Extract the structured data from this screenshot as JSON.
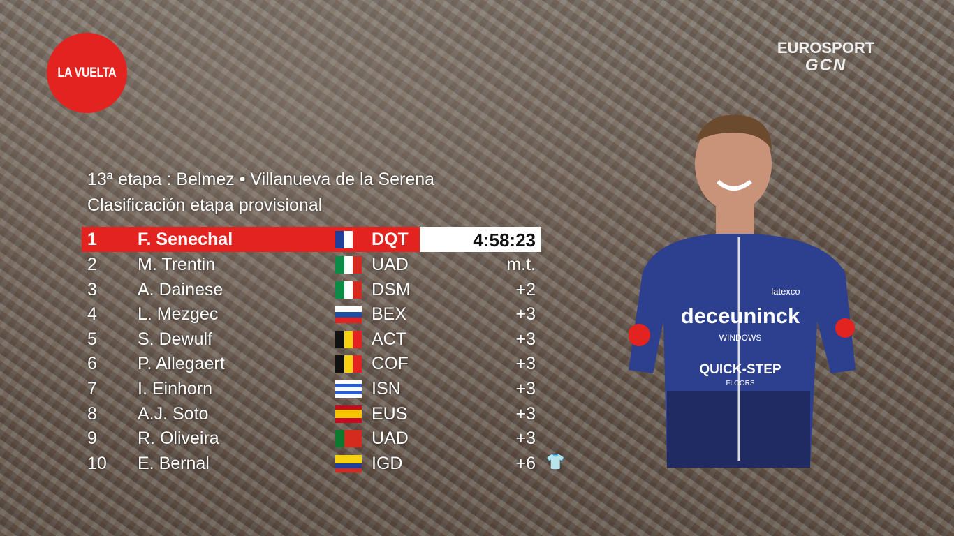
{
  "broadcast": {
    "race_logo": "LA VUELTA",
    "channel_logo_line1": "EUROSPORT",
    "channel_logo_line2": "GCN"
  },
  "header": {
    "stage": "13ª etapa : Belmez • Villanueva de la Serena",
    "subtitle": "Clasificación etapa provisional"
  },
  "results": [
    {
      "pos": "1",
      "name": "F. Senechal",
      "flag": "france",
      "team": "DQT",
      "time": "4:58:23"
    },
    {
      "pos": "2",
      "name": "M. Trentin",
      "flag": "italy",
      "team": "UAD",
      "time": "m.t."
    },
    {
      "pos": "3",
      "name": "A. Dainese",
      "flag": "italy",
      "team": "DSM",
      "time": "+2"
    },
    {
      "pos": "4",
      "name": "L. Mezgec",
      "flag": "slovenia",
      "team": "BEX",
      "time": "+3"
    },
    {
      "pos": "5",
      "name": "S. Dewulf",
      "flag": "belgium",
      "team": "ACT",
      "time": "+3"
    },
    {
      "pos": "6",
      "name": "P. Allegaert",
      "flag": "belgium",
      "team": "COF",
      "time": "+3"
    },
    {
      "pos": "7",
      "name": "I. Einhorn",
      "flag": "israel",
      "team": "ISN",
      "time": "+3"
    },
    {
      "pos": "8",
      "name": "A.J. Soto",
      "flag": "spain",
      "team": "EUS",
      "time": "+3"
    },
    {
      "pos": "9",
      "name": "R. Oliveira",
      "flag": "portugal",
      "team": "UAD",
      "time": "+3"
    },
    {
      "pos": "10",
      "name": "E. Bernal",
      "flag": "colombia",
      "team": "IGD",
      "time": "+6",
      "badge": "white-jersey-icon"
    }
  ],
  "rider_jersey": {
    "sponsor": "deceuninck",
    "sub": "WINDOWS",
    "team": "QUICK-STEP",
    "floors": "FLOORS",
    "chest": "latexco"
  },
  "colors": {
    "accent": "#e3231f",
    "jersey": "#2d3f8f"
  }
}
